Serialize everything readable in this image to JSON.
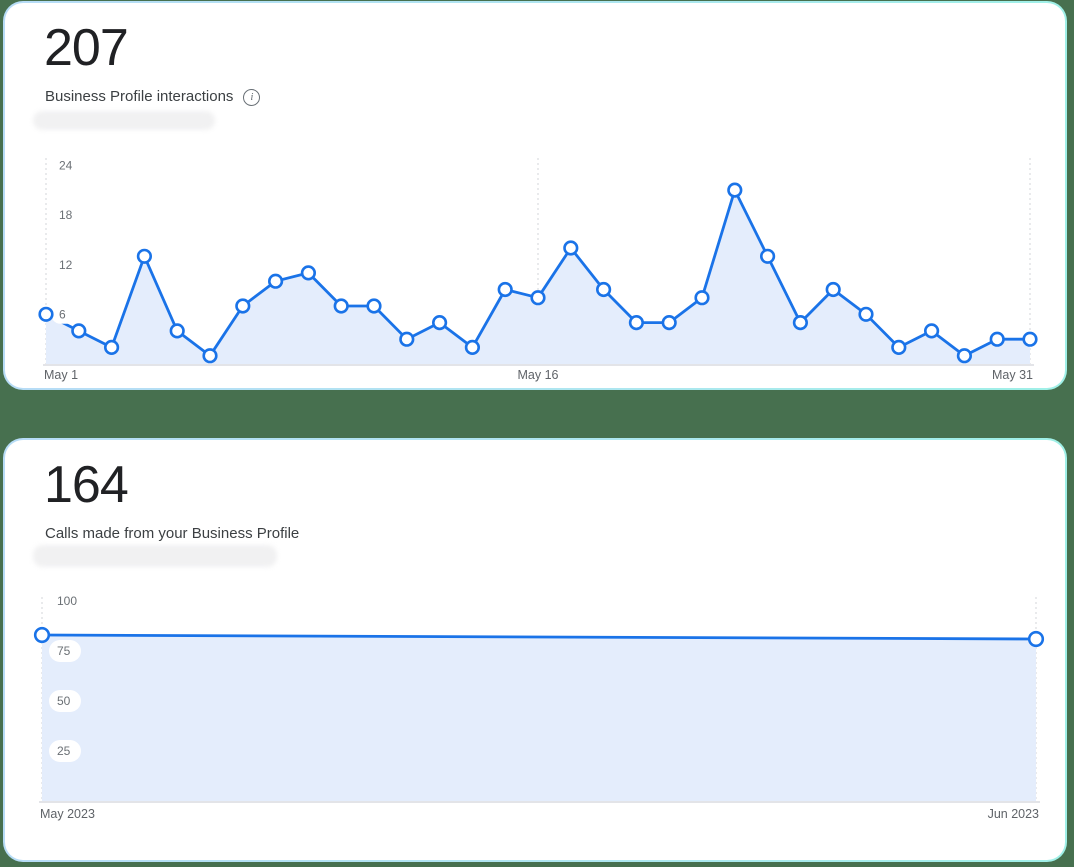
{
  "page": {
    "background_color": "#47704f",
    "card_border_color_left": "#b7dcf6",
    "card_border_color_right": "#9ff0e7",
    "accent_blue": "#1a73e8",
    "area_fill": "#e4edfc"
  },
  "cards": [
    {
      "metric_value": "207",
      "metric_label": "Business Profile interactions",
      "info_icon": "info-icon",
      "redacted_placeholder": true
    },
    {
      "metric_value": "164",
      "metric_label": "Calls made from your Business Profile",
      "redacted_placeholder": true
    }
  ],
  "chart_data": [
    {
      "type": "area",
      "name": "business-profile-interactions",
      "title": "Business Profile interactions",
      "categories": [
        "May 1",
        "May 2",
        "May 3",
        "May 4",
        "May 5",
        "May 6",
        "May 7",
        "May 8",
        "May 9",
        "May 10",
        "May 11",
        "May 12",
        "May 13",
        "May 14",
        "May 15",
        "May 16",
        "May 17",
        "May 18",
        "May 19",
        "May 20",
        "May 21",
        "May 22",
        "May 23",
        "May 24",
        "May 25",
        "May 26",
        "May 27",
        "May 28",
        "May 29",
        "May 30",
        "May 31"
      ],
      "values": [
        6,
        4,
        2,
        13,
        4,
        1,
        7,
        10,
        11,
        7,
        7,
        3,
        5,
        2,
        9,
        8,
        14,
        9,
        5,
        5,
        8,
        21,
        13,
        5,
        9,
        6,
        2,
        4,
        1,
        3,
        3
      ],
      "total": 207,
      "x_tick_labels": [
        {
          "label": "May 1",
          "index": 0
        },
        {
          "label": "May 16",
          "index": 15
        },
        {
          "label": "May 31",
          "index": 30
        }
      ],
      "y_ticks": [
        6,
        12,
        18,
        24
      ],
      "ylim": [
        0,
        24
      ],
      "xlabel": "",
      "ylabel": "",
      "legend": "none",
      "grid": "dashed-vertical-at-x-ticks",
      "line_color": "#1a73e8",
      "fill_color": "#e4edfc",
      "marker": "circle-white-fill"
    },
    {
      "type": "area",
      "name": "calls-made",
      "title": "Calls made from your Business Profile",
      "categories": [
        "May 2023",
        "Jun 2023"
      ],
      "values": [
        83,
        81
      ],
      "total": 164,
      "x_tick_labels": [
        {
          "label": "May 2023",
          "index": 0
        },
        {
          "label": "Jun 2023",
          "index": 1
        }
      ],
      "y_ticks": [
        25,
        50,
        75,
        100
      ],
      "ylim": [
        0,
        100
      ],
      "xlabel": "",
      "ylabel": "",
      "legend": "none",
      "grid": "dashed-vertical-at-x-ticks",
      "line_color": "#1a73e8",
      "fill_color": "#e4edfc",
      "marker": "circle-white-fill"
    }
  ]
}
